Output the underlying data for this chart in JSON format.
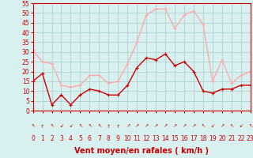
{
  "xlabel": "Vent moyen/en rafales ( km/h )",
  "hours": [
    0,
    1,
    2,
    3,
    4,
    5,
    6,
    7,
    8,
    9,
    10,
    11,
    12,
    13,
    14,
    15,
    16,
    17,
    18,
    19,
    20,
    21,
    22,
    23
  ],
  "vent_moyen": [
    15,
    19,
    3,
    8,
    3,
    8,
    11,
    10,
    8,
    8,
    13,
    22,
    27,
    26,
    29,
    23,
    25,
    20,
    10,
    9,
    11,
    11,
    13,
    13
  ],
  "vent_rafales": [
    31,
    25,
    24,
    13,
    12,
    13,
    18,
    18,
    14,
    15,
    24,
    35,
    49,
    52,
    52,
    42,
    49,
    51,
    44,
    15,
    26,
    14,
    18,
    20
  ],
  "color_moyen": "#cc0000",
  "color_rafales": "#ffaaaa",
  "bg_color": "#d8f0f0",
  "grid_color": "#aacccc",
  "ylim": [
    0,
    55
  ],
  "yticks": [
    0,
    5,
    10,
    15,
    20,
    25,
    30,
    35,
    40,
    45,
    50,
    55
  ],
  "xticks": [
    0,
    1,
    2,
    3,
    4,
    5,
    6,
    7,
    8,
    9,
    10,
    11,
    12,
    13,
    14,
    15,
    16,
    17,
    18,
    19,
    20,
    21,
    22,
    23
  ],
  "tick_fontsize": 5.5,
  "label_fontsize": 7,
  "marker_size": 3,
  "line_width": 1.0,
  "arrow_chars": [
    "↖",
    "↑",
    "↖",
    "↙",
    "↙",
    "↖",
    "↖",
    "↖",
    "↑",
    "↑",
    "↗",
    "↗",
    "↗",
    "↗",
    "↗",
    "↗",
    "↗",
    "↗",
    "↖",
    "↙",
    "↗",
    "↖",
    "↙",
    "↖"
  ]
}
